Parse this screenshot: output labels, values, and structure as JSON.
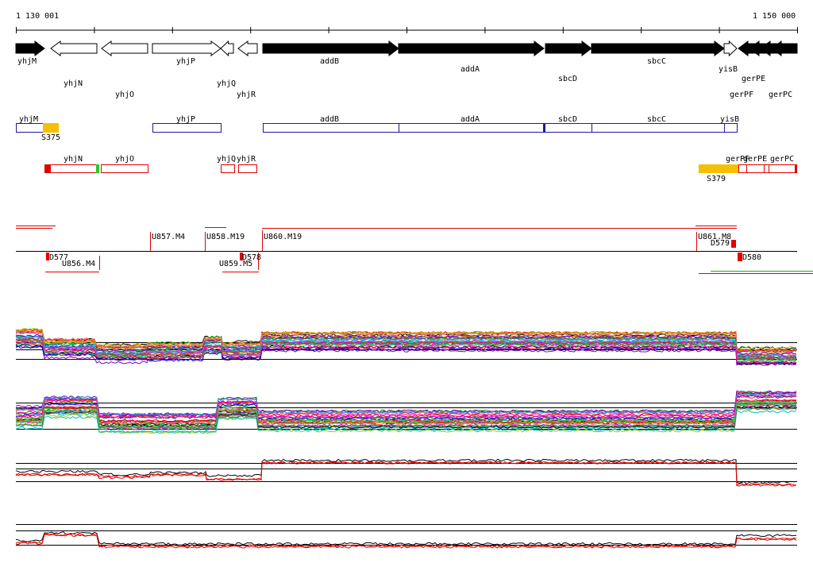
{
  "ruler": {
    "start": "1 130 001",
    "end": "1 150 000"
  },
  "gene_track": {
    "labels": [
      "yhjM",
      "yhjN",
      "yhjO",
      "yhjP",
      "yhjQ",
      "yhjR",
      "addB",
      "addA",
      "sbcD",
      "sbcC",
      "yisB",
      "gerPE",
      "gerPF",
      "gerPC"
    ]
  },
  "annotation_track": {
    "labels": [
      "yhjM",
      "S375",
      "yhjP",
      "addB",
      "addA",
      "sbcD",
      "sbcC",
      "yisB"
    ]
  },
  "region_track": {
    "labels": [
      "yhjN",
      "yhjO",
      "yhjQ",
      "yhjR",
      "S379",
      "gerPF",
      "gerPE",
      "gerPC"
    ]
  },
  "transcript_track": {
    "labels": [
      "U857.M4",
      "U858.M19",
      "U860.M19",
      "U861.M8",
      "D579",
      "D577",
      "U856.M4",
      "D578",
      "U859.M5",
      "D580"
    ]
  }
}
